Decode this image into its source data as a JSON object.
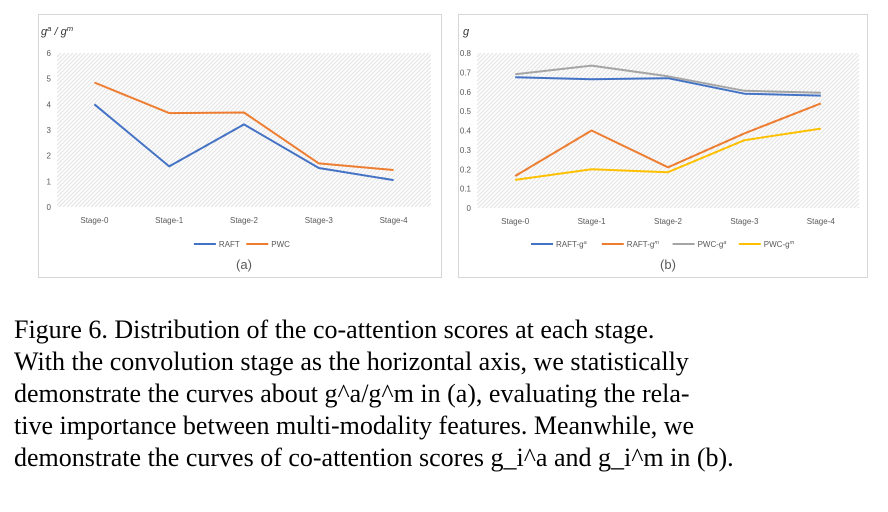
{
  "chart_data": [
    {
      "type": "line",
      "ylabel": "g^a / g^m",
      "categories": [
        "Stage-0",
        "Stage-1",
        "Stage-2",
        "Stage-3",
        "Stage-4"
      ],
      "ylim": [
        0,
        6
      ],
      "yticks": [
        "0",
        "1",
        "2",
        "3",
        "4",
        "5",
        "6"
      ],
      "series": [
        {
          "name": "RAFT",
          "color": "#4472C4",
          "values": [
            4.0,
            1.58,
            3.22,
            1.52,
            1.05
          ]
        },
        {
          "name": "PWC",
          "color": "#ED7D31",
          "values": [
            4.85,
            3.66,
            3.68,
            1.7,
            1.44
          ]
        }
      ],
      "legend": "bottom-center",
      "grid": true,
      "panel_label": "(a)"
    },
    {
      "type": "line",
      "ylabel": "g",
      "categories": [
        "Stage-0",
        "Stage-1",
        "Stage-2",
        "Stage-3",
        "Stage-4"
      ],
      "ylim": [
        0,
        0.8
      ],
      "yticks": [
        "0",
        "0.1",
        "0.2",
        "0.3",
        "0.4",
        "0.5",
        "0.6",
        "0.7",
        "0.8"
      ],
      "series": [
        {
          "name": "RAFT-g^a",
          "color": "#4472C4",
          "values": [
            0.675,
            0.665,
            0.67,
            0.59,
            0.58
          ]
        },
        {
          "name": "RAFT-g^m",
          "color": "#ED7D31",
          "values": [
            0.165,
            0.4,
            0.21,
            0.385,
            0.54
          ]
        },
        {
          "name": "PWC-g^a",
          "color": "#A5A5A5",
          "values": [
            0.69,
            0.735,
            0.68,
            0.605,
            0.595
          ]
        },
        {
          "name": "PWC-g^m",
          "color": "#FFC000",
          "values": [
            0.145,
            0.2,
            0.185,
            0.35,
            0.41
          ]
        }
      ],
      "legend": "bottom-center",
      "grid": true,
      "panel_label": "(b)"
    }
  ],
  "caption": {
    "lines": [
      "Figure 6. Distribution of the co-attention scores at each stage.",
      "With the convolution stage as the horizontal axis, we statistically",
      "demonstrate the curves about g^a/g^m in (a), evaluating the rela-",
      "tive importance between multi-modality features. Meanwhile, we",
      "demonstrate the curves of co-attention scores g_i^a and g_i^m in (b)."
    ]
  }
}
